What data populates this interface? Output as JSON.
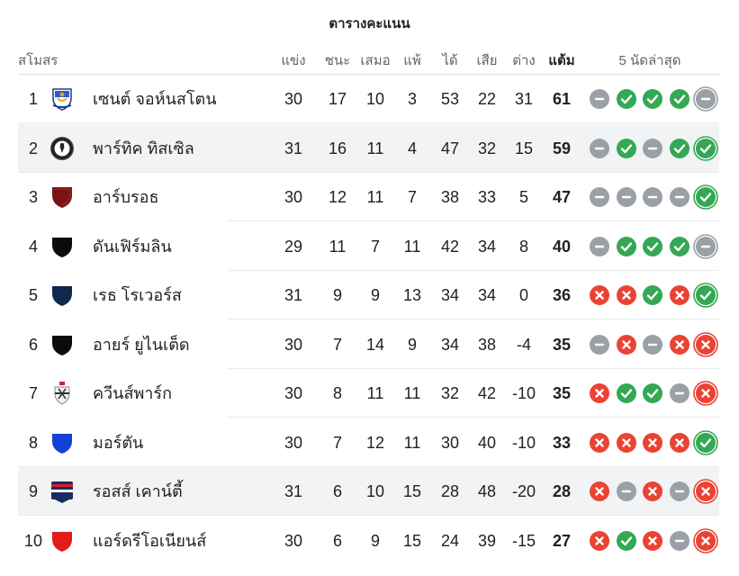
{
  "title": "ตารางคะแนน",
  "headers": {
    "club": "สโมสร",
    "played": "แข่ง",
    "won": "ชนะ",
    "drawn": "เสมอ",
    "lost": "แพ้",
    "gf": "ได้",
    "ga": "เสีย",
    "gd": "ต่าง",
    "points": "แต้ม",
    "form": "5 นัดล่าสุด"
  },
  "colors": {
    "win": "#34a853",
    "draw": "#9aa0a6",
    "loss": "#ea4335",
    "highlight_row": "#f1f3f4"
  },
  "rows": [
    {
      "pos": "1",
      "crest": "st-johnstone-crest",
      "name": "เซนต์ จอห์นสโตน",
      "played": "30",
      "won": "17",
      "drawn": "10",
      "lost": "3",
      "gf": "53",
      "ga": "22",
      "gd": "31",
      "points": "61",
      "form": [
        "D",
        "W",
        "W",
        "W",
        "D"
      ],
      "highlight": false
    },
    {
      "pos": "2",
      "crest": "partick-thistle-crest",
      "name": "พาร์ทิค ทิสเซิล",
      "played": "31",
      "won": "16",
      "drawn": "11",
      "lost": "4",
      "gf": "47",
      "ga": "32",
      "gd": "15",
      "points": "59",
      "form": [
        "D",
        "W",
        "D",
        "W",
        "W"
      ],
      "highlight": true
    },
    {
      "pos": "3",
      "crest": "arbroath-crest",
      "name": "อาร์บรอธ",
      "played": "30",
      "won": "12",
      "drawn": "11",
      "lost": "7",
      "gf": "38",
      "ga": "33",
      "gd": "5",
      "points": "47",
      "form": [
        "D",
        "D",
        "D",
        "D",
        "W"
      ],
      "highlight": false
    },
    {
      "pos": "4",
      "crest": "dunfermline-crest",
      "name": "ดันเฟิร์มลิน",
      "played": "29",
      "won": "11",
      "drawn": "7",
      "lost": "11",
      "gf": "42",
      "ga": "34",
      "gd": "8",
      "points": "40",
      "form": [
        "D",
        "W",
        "W",
        "W",
        "D"
      ],
      "highlight": false
    },
    {
      "pos": "5",
      "crest": "raith-rovers-crest",
      "name": "เรธ โรเวอร์ส",
      "played": "31",
      "won": "9",
      "drawn": "9",
      "lost": "13",
      "gf": "34",
      "ga": "34",
      "gd": "0",
      "points": "36",
      "form": [
        "L",
        "L",
        "W",
        "L",
        "W"
      ],
      "highlight": false
    },
    {
      "pos": "6",
      "crest": "ayr-united-crest",
      "name": "อายร์ ยูไนเต็ด",
      "played": "30",
      "won": "7",
      "drawn": "14",
      "lost": "9",
      "gf": "34",
      "ga": "38",
      "gd": "-4",
      "points": "35",
      "form": [
        "D",
        "L",
        "D",
        "L",
        "L"
      ],
      "highlight": false
    },
    {
      "pos": "7",
      "crest": "queens-park-crest",
      "name": "ควีนส์พาร์ก",
      "played": "30",
      "won": "8",
      "drawn": "11",
      "lost": "11",
      "gf": "32",
      "ga": "42",
      "gd": "-10",
      "points": "35",
      "form": [
        "L",
        "W",
        "W",
        "D",
        "L"
      ],
      "highlight": false
    },
    {
      "pos": "8",
      "crest": "morton-crest",
      "name": "มอร์ตัน",
      "played": "30",
      "won": "7",
      "drawn": "12",
      "lost": "11",
      "gf": "30",
      "ga": "40",
      "gd": "-10",
      "points": "33",
      "form": [
        "L",
        "L",
        "L",
        "L",
        "W"
      ],
      "highlight": false
    },
    {
      "pos": "9",
      "crest": "ross-county-crest",
      "name": "รอสส์ เคาน์ตี้",
      "played": "31",
      "won": "6",
      "drawn": "10",
      "lost": "15",
      "gf": "28",
      "ga": "48",
      "gd": "-20",
      "points": "28",
      "form": [
        "L",
        "D",
        "L",
        "D",
        "L"
      ],
      "highlight": true
    },
    {
      "pos": "10",
      "crest": "airdrieonians-crest",
      "name": "แอร์ดรีโอเนียนส์",
      "played": "30",
      "won": "6",
      "drawn": "9",
      "lost": "15",
      "gf": "24",
      "ga": "39",
      "gd": "-15",
      "points": "27",
      "form": [
        "L",
        "W",
        "L",
        "D",
        "L"
      ],
      "highlight": false
    }
  ]
}
